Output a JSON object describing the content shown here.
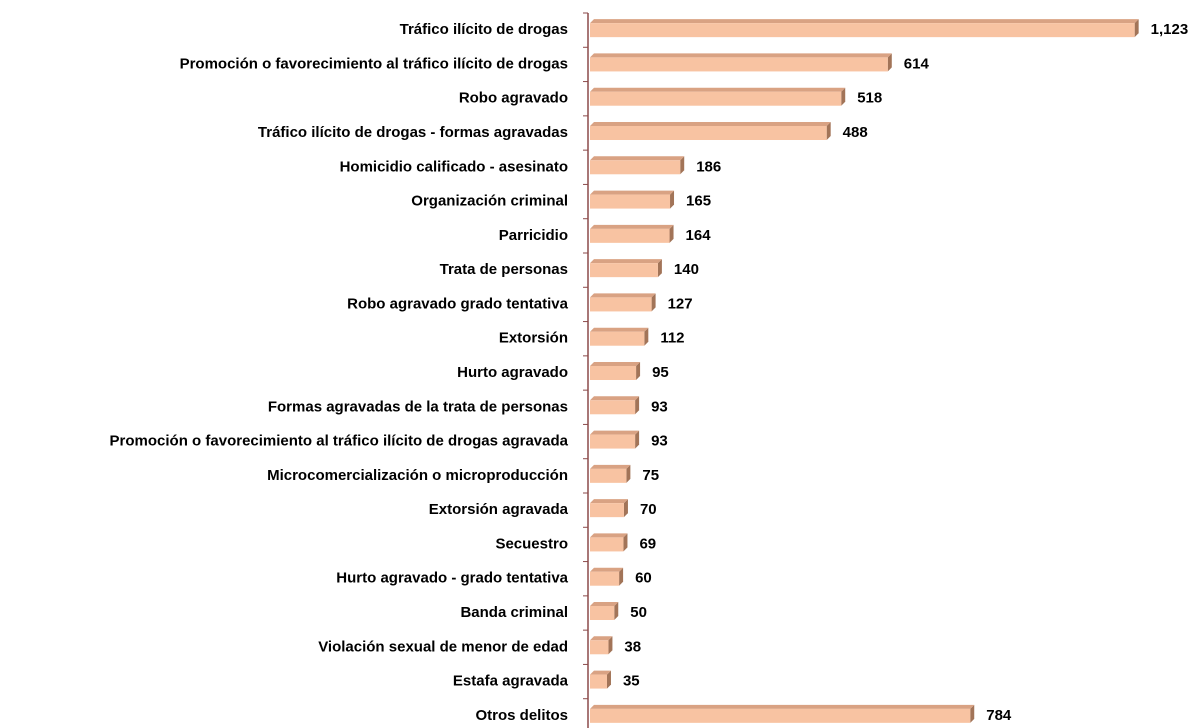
{
  "chart_data": {
    "type": "bar",
    "orientation": "horizontal",
    "categories": [
      "Tráfico ilícito de drogas",
      "Promoción o favorecimiento al tráfico ilícito de drogas",
      "Robo agravado",
      "Tráfico ilícito de drogas - formas agravadas",
      "Homicidio calificado - asesinato",
      "Organización criminal",
      "Parricidio",
      "Trata de personas",
      "Robo agravado grado tentativa",
      "Extorsión",
      "Hurto agravado",
      "Formas agravadas de la trata de personas",
      "Promoción o favorecimiento al tráfico ilícito de drogas agravada",
      "Microcomercialización o microproducción",
      "Extorsión agravada",
      "Secuestro",
      "Hurto agravado - grado tentativa",
      "Banda criminal",
      "Violación sexual de menor de edad",
      "Estafa agravada",
      "Otros delitos"
    ],
    "values": [
      1123,
      614,
      518,
      488,
      186,
      165,
      164,
      140,
      127,
      112,
      95,
      93,
      93,
      75,
      70,
      69,
      60,
      50,
      38,
      35,
      784
    ],
    "value_labels": [
      "1,123",
      "614",
      "518",
      "488",
      "186",
      "165",
      "164",
      "140",
      "127",
      "112",
      "95",
      "93",
      "93",
      "75",
      "70",
      "69",
      "60",
      "50",
      "38",
      "35",
      "784"
    ],
    "color": "#f8c3a2",
    "xlim": [
      0,
      1200
    ]
  }
}
